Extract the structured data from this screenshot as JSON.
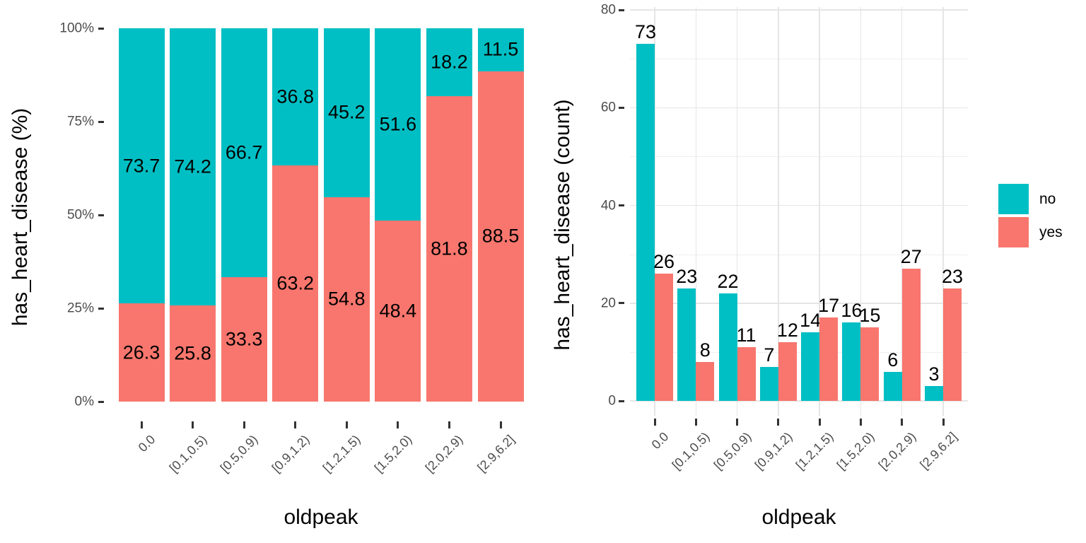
{
  "figure": {
    "background": "#FFFFFF"
  },
  "colors": {
    "axis_text": "#4D4D4D",
    "axis_title": "#000000",
    "tick_mark": "#333333",
    "grid_major": "#E5E5E5",
    "grid_minor": "#EFEFEF",
    "value_label": "#000000"
  },
  "legend": {
    "items": [
      {
        "label": "no",
        "color": "#00BFC4"
      },
      {
        "label": "yes",
        "color": "#F8766D"
      }
    ]
  },
  "chart_data": [
    {
      "type": "bar",
      "subtype": "stacked-100-percent",
      "title": "",
      "xlabel": "oldpeak",
      "ylabel": "has_heart_disease (%)",
      "categories": [
        "0.0",
        "[0.1,0.5)",
        "[0.5,0.9)",
        "[0.9,1.2)",
        "[1.2,1.5)",
        "[1.5,2.0)",
        "[2.0,2.9)",
        "[2.9,6.2]"
      ],
      "series": [
        {
          "name": "yes",
          "color": "#F8766D",
          "values": [
            26.3,
            25.8,
            33.3,
            63.2,
            54.8,
            48.4,
            81.8,
            88.5
          ]
        },
        {
          "name": "no",
          "color": "#00BFC4",
          "values": [
            73.7,
            74.2,
            66.7,
            36.8,
            45.2,
            51.6,
            18.2,
            11.5
          ]
        }
      ],
      "value_labels": true,
      "ylim": [
        0,
        100
      ],
      "yticks": [
        {
          "value": 0,
          "label": "0%"
        },
        {
          "value": 25,
          "label": "25%"
        },
        {
          "value": 50,
          "label": "50%"
        },
        {
          "value": 75,
          "label": "75%"
        },
        {
          "value": 100,
          "label": "100%"
        }
      ],
      "grid": false,
      "legend_position": "none"
    },
    {
      "type": "bar",
      "subtype": "grouped",
      "title": "",
      "xlabel": "oldpeak",
      "ylabel": "has_heart_disease (count)",
      "categories": [
        "0.0",
        "[0.1,0.5)",
        "[0.5,0.9)",
        "[0.9,1.2)",
        "[1.2,1.5)",
        "[1.5,2.0)",
        "[2.0,2.9)",
        "[2.9,6.2]"
      ],
      "series": [
        {
          "name": "no",
          "color": "#00BFC4",
          "values": [
            73,
            23,
            22,
            7,
            14,
            16,
            6,
            3
          ]
        },
        {
          "name": "yes",
          "color": "#F8766D",
          "values": [
            26,
            8,
            11,
            12,
            17,
            15,
            27,
            23
          ]
        }
      ],
      "value_labels": true,
      "ylim": [
        0,
        80
      ],
      "yticks": [
        {
          "value": 0,
          "label": "0"
        },
        {
          "value": 20,
          "label": "20"
        },
        {
          "value": 40,
          "label": "40"
        },
        {
          "value": 60,
          "label": "60"
        },
        {
          "value": 80,
          "label": "80"
        }
      ],
      "grid": true,
      "legend_position": "right"
    }
  ]
}
